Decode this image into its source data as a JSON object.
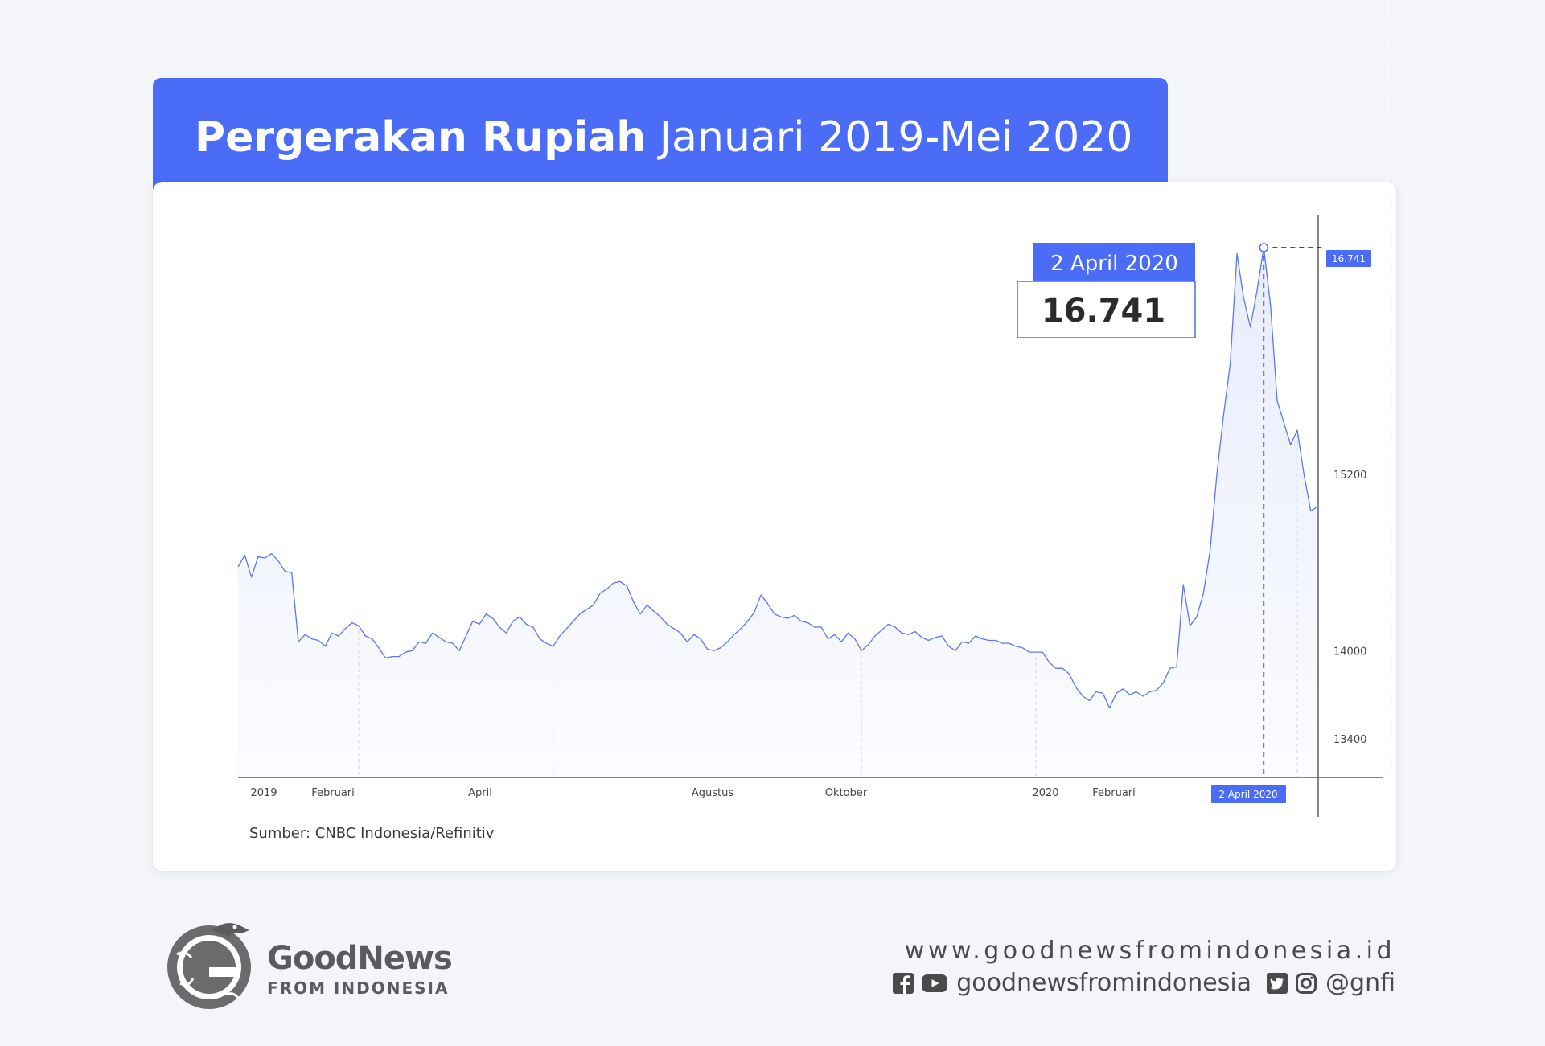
{
  "title": {
    "bold": "Pergerakan Rupiah",
    "normal": "Januari 2019-Mei 2020"
  },
  "colors": {
    "accent": "#4a6cf7",
    "line": "#5a78f0",
    "area_fill": "#e8ecfd",
    "text_dark": "#2b2b2b",
    "footer_text": "#4a4a4c"
  },
  "source": "Sumber: CNBC Indonesia/Refinitiv",
  "chart_data": {
    "type": "area",
    "x_ticks": [
      "2019",
      "Februari",
      "April",
      "Agustus",
      "Oktober",
      "2020",
      "Februari"
    ],
    "y_ticks": [
      "15200",
      "14000",
      "13400"
    ],
    "ylim": [
      12900,
      16741
    ],
    "grid": false,
    "highlight": {
      "date": "2 April 2020",
      "value": "16.741",
      "axis_label": "16.741",
      "x_label": "2 April 2020"
    },
    "series": [
      {
        "values": [
          14570,
          14650,
          14500,
          14640,
          14630,
          14660,
          14610,
          14540,
          14530,
          14060,
          14110,
          14080,
          14070,
          14030,
          14120,
          14100,
          14150,
          14190,
          14170,
          14100,
          14080,
          14020,
          13950,
          13960,
          13960,
          13990,
          14000,
          14060,
          14050,
          14120,
          14090,
          14060,
          14050,
          14000,
          14100,
          14200,
          14180,
          14250,
          14220,
          14160,
          14120,
          14200,
          14230,
          14180,
          14160,
          14080,
          14050,
          14030,
          14100,
          14150,
          14200,
          14250,
          14280,
          14310,
          14390,
          14420,
          14460,
          14470,
          14440,
          14330,
          14250,
          14310,
          14270,
          14230,
          14180,
          14150,
          14120,
          14060,
          14110,
          14080,
          14010,
          14000,
          14020,
          14060,
          14110,
          14150,
          14200,
          14260,
          14380,
          14320,
          14250,
          14230,
          14220,
          14240,
          14200,
          14190,
          14160,
          14160,
          14080,
          14110,
          14060,
          14120,
          14080,
          14000,
          14040,
          14100,
          14140,
          14180,
          14160,
          14120,
          14110,
          14130,
          14090,
          14070,
          14090,
          14100,
          14030,
          14000,
          14060,
          14050,
          14100,
          14080,
          14070,
          14070,
          14050,
          14050,
          14030,
          14020,
          13990,
          13990,
          13990,
          13920,
          13880,
          13880,
          13840,
          13750,
          13690,
          13660,
          13720,
          13710,
          13610,
          13710,
          13740,
          13700,
          13720,
          13690,
          13720,
          13730,
          13780,
          13880,
          13890,
          14450,
          14170,
          14230,
          14390,
          14680,
          15200,
          15600,
          15950,
          16700,
          16400,
          16200,
          16450,
          16741,
          16350,
          15700,
          15550,
          15400,
          15500,
          15200,
          14950,
          14980
        ]
      }
    ]
  },
  "footer": {
    "logo_name": "GoodNews",
    "logo_sub": "FROM INDONESIA",
    "website": "www.goodnewsfromindonesia.id",
    "social_handle_main": "goodnewsfromindonesia",
    "social_handle_short": "@gnfi"
  }
}
